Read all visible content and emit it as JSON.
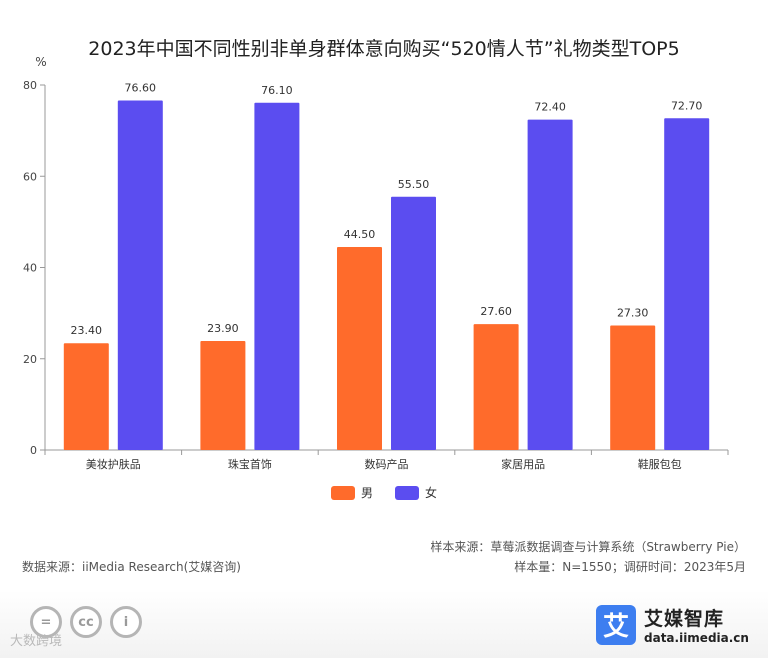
{
  "chart_data": {
    "type": "bar",
    "title": "2023年中国不同性别非单身群体意向购买“520情人节”礼物类型TOP5",
    "ylabel": "%",
    "xlabel": "",
    "ylim": [
      0,
      80
    ],
    "yticks": [
      0,
      20,
      40,
      60,
      80
    ],
    "categories": [
      "美妆护肤品",
      "珠宝首饰",
      "数码产品",
      "家居用品",
      "鞋服包包"
    ],
    "series": [
      {
        "name": "男",
        "color": "#ff6b2b",
        "values": [
          23.4,
          23.9,
          44.5,
          27.6,
          27.3
        ],
        "labels": [
          "23.40",
          "23.90",
          "44.50",
          "27.60",
          "27.30"
        ]
      },
      {
        "name": "女",
        "color": "#5b4df0",
        "values": [
          76.6,
          76.1,
          55.5,
          72.4,
          72.7
        ],
        "labels": [
          "76.60",
          "76.10",
          "55.50",
          "72.40",
          "72.70"
        ]
      }
    ],
    "legend": "bottom-center",
    "grid": false
  },
  "footer": {
    "data_source": "数据来源：iiMedia Research(艾媒咨询)",
    "sample_source": "样本来源：草莓派数据调查与计算系统（Strawberry Pie）",
    "sample_info": "样本量：N=1550；调研时间：2023年5月",
    "watermark": "大数跨境",
    "cc_icons": [
      "=",
      "cc",
      "i"
    ],
    "logo_badge": "艾",
    "logo_name": "艾媒智库",
    "logo_url": "data.iimedia.cn"
  }
}
